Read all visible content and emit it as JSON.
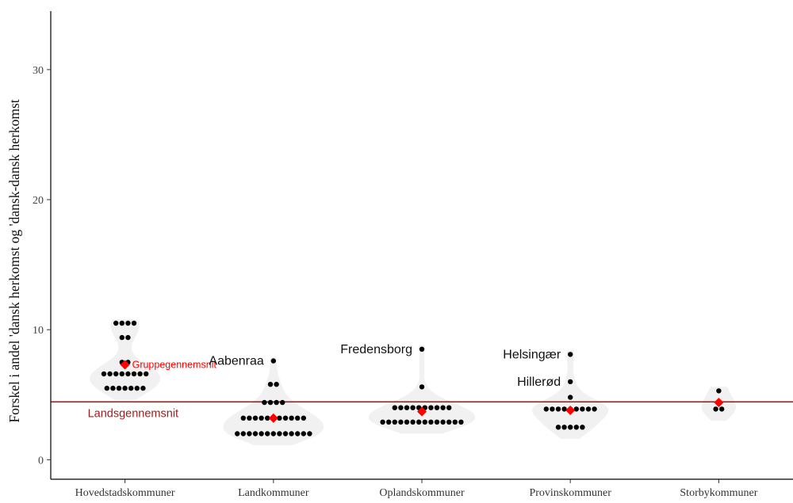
{
  "chart_data": {
    "type": "scatter",
    "subtype": "beeswarm-violin",
    "ylabel": "Forskel i andel 'dansk herkomst og 'dansk-dansk herkomst",
    "xlabel": "",
    "ylim": [
      -1.5,
      34.5
    ],
    "yticks": [
      0,
      10,
      20,
      30
    ],
    "categories": [
      "Hovedstadskommuner",
      "Landkommuner",
      "Oplandskommuner",
      "Provinskommuner",
      "Storbykommuner"
    ],
    "reference_line": {
      "label": "Landsgennemsnit",
      "value": 4.45,
      "color": "#9b1c1c"
    },
    "mean_marker": {
      "label": "Gruppegennemsnit",
      "color": "#ff0000"
    },
    "groups": [
      {
        "category": "Hovedstadskommuner",
        "mean": 7.3,
        "mean_label": "Gruppegennemsnit",
        "points": [
          {
            "y": 10.5,
            "n": 4
          },
          {
            "y": 9.4,
            "n": 2
          },
          {
            "y": 7.5,
            "n": 2
          },
          {
            "y": 6.6,
            "n": 8
          },
          {
            "y": 5.5,
            "n": 7
          }
        ]
      },
      {
        "category": "Landkommuner",
        "mean": 3.2,
        "points": [
          {
            "y": 7.6,
            "n": 1
          },
          {
            "y": 5.8,
            "n": 2
          },
          {
            "y": 4.4,
            "n": 4
          },
          {
            "y": 3.2,
            "n": 11
          },
          {
            "y": 2.0,
            "n": 13
          }
        ],
        "annotations": [
          {
            "label": "Aabenraa",
            "y": 7.6
          }
        ]
      },
      {
        "category": "Oplandskommuner",
        "mean": 3.7,
        "points": [
          {
            "y": 8.5,
            "n": 1
          },
          {
            "y": 5.6,
            "n": 1
          },
          {
            "y": 4.0,
            "n": 10
          },
          {
            "y": 2.9,
            "n": 14
          }
        ],
        "annotations": [
          {
            "label": "Fredensborg",
            "y": 8.5
          }
        ]
      },
      {
        "category": "Provinskommuner",
        "mean": 3.8,
        "points": [
          {
            "y": 8.1,
            "n": 1
          },
          {
            "y": 6.0,
            "n": 1
          },
          {
            "y": 4.8,
            "n": 1
          },
          {
            "y": 3.9,
            "n": 9
          },
          {
            "y": 2.5,
            "n": 5
          }
        ],
        "annotations": [
          {
            "label": "Helsingær",
            "y": 8.1
          },
          {
            "label": "Hillerød",
            "y": 6.0
          }
        ]
      },
      {
        "category": "Storbykommuner",
        "mean": 4.4,
        "points": [
          {
            "y": 5.3,
            "n": 1
          },
          {
            "y": 3.9,
            "n": 2
          }
        ]
      }
    ],
    "grid": false,
    "legend": "none"
  }
}
